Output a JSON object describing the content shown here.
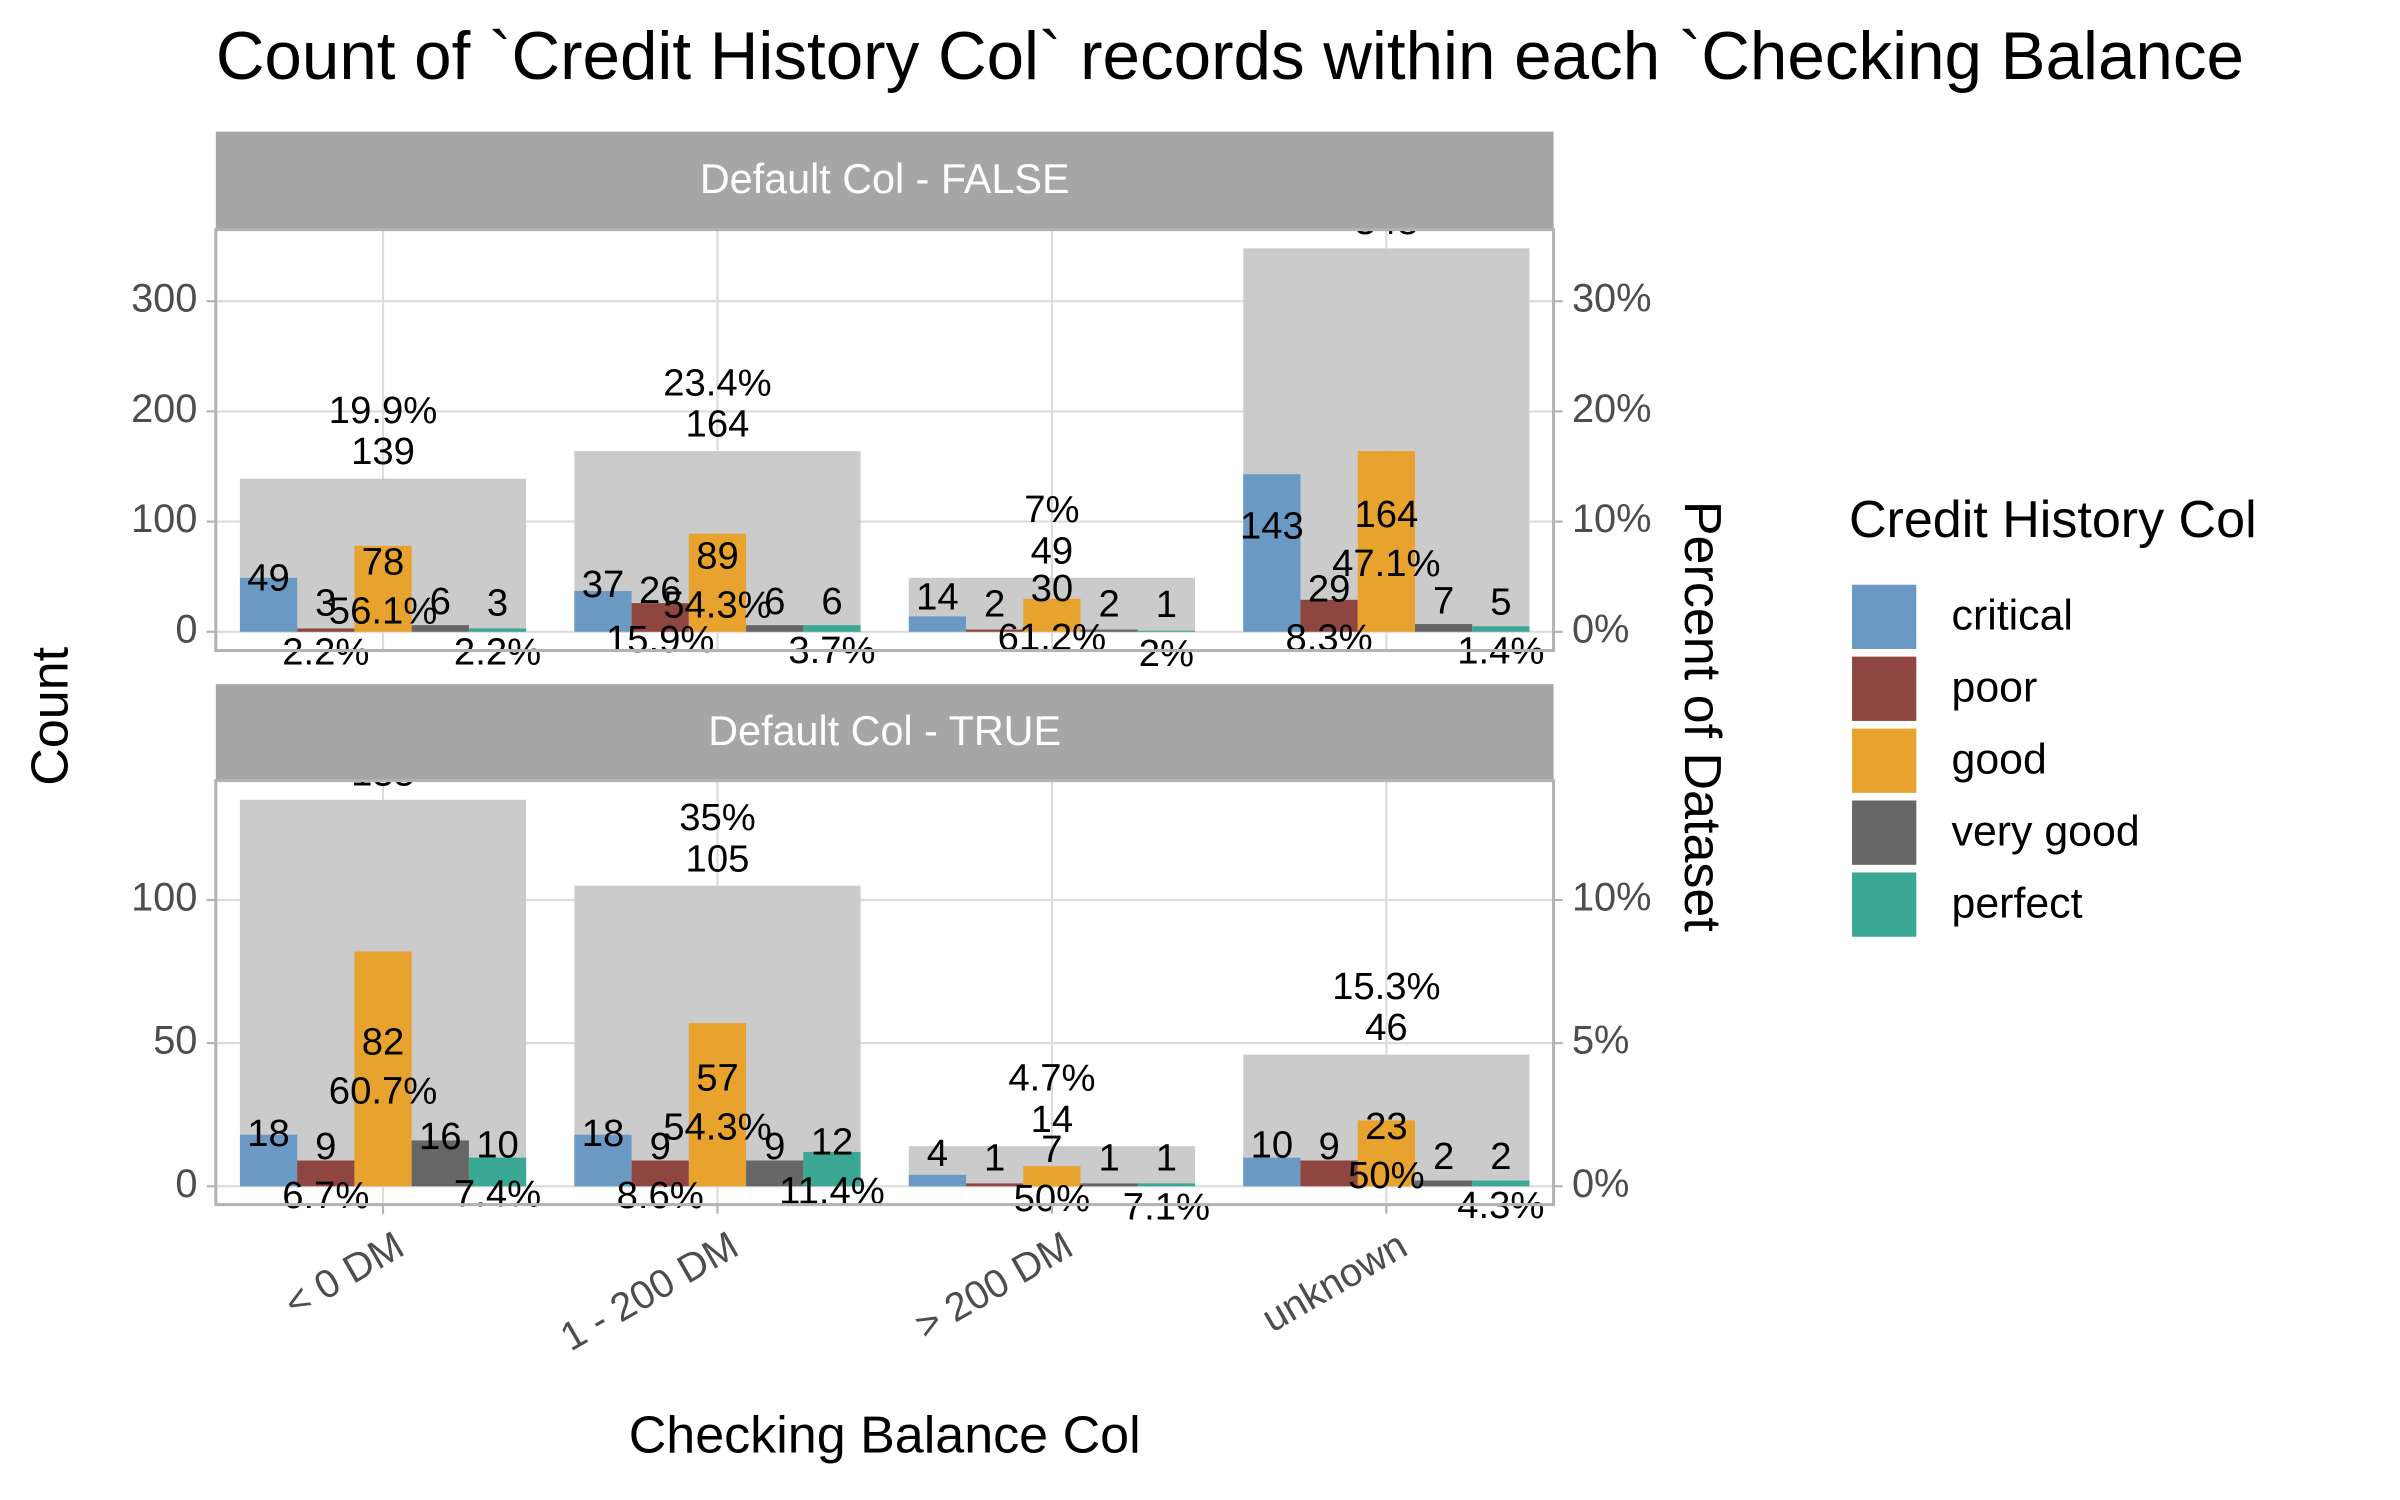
{
  "title": "Count of `Credit History Col` records within each `Checking Balance",
  "x_label": "Checking Balance Col",
  "y_label": "Count",
  "y2_label": "Percent of Dataset",
  "legend_title": "Credit History Col",
  "categories": [
    "< 0 DM",
    "1 - 200 DM",
    "> 200 DM",
    "unknown"
  ],
  "series": [
    {
      "name": "critical",
      "color": "#6a9ac4"
    },
    {
      "name": "poor",
      "color": "#8f4640"
    },
    {
      "name": "good",
      "color": "#e8a22e"
    },
    {
      "name": "very good",
      "color": "#666666"
    },
    {
      "name": "perfect",
      "color": "#3aa894"
    }
  ],
  "chart_data": [
    {
      "type": "bar",
      "facet": "Default Col - FALSE",
      "totals": [
        139,
        164,
        49,
        348
      ],
      "total_labels": [
        "19.9%",
        "23.4%",
        "7%",
        null
      ],
      "total_color": "#c8c8c8",
      "series": [
        {
          "values": [
            49,
            37,
            14,
            143
          ],
          "percent_labels": [
            null,
            null,
            null,
            null
          ]
        },
        {
          "values": [
            3,
            26,
            2,
            29
          ],
          "percent_labels": [
            "2.2%",
            "15.9%",
            null,
            "8.3%"
          ]
        },
        {
          "values": [
            78,
            89,
            30,
            164
          ],
          "percent_labels": [
            "56.1%",
            "54.3%",
            "61.2%",
            "47.1%"
          ]
        },
        {
          "values": [
            6,
            6,
            2,
            7
          ],
          "percent_labels": [
            null,
            null,
            null,
            null
          ]
        },
        {
          "values": [
            3,
            6,
            1,
            5
          ],
          "percent_labels": [
            "2.2%",
            "3.7%",
            "2%",
            "1.4%"
          ]
        }
      ],
      "ylim": [
        -17,
        365
      ],
      "yticks": [
        0,
        100,
        200,
        300
      ],
      "y2lim": [
        -1.7,
        36.5
      ],
      "y2ticks": [
        {
          "value": 0,
          "label": "0%"
        },
        {
          "value": 10,
          "label": "10%"
        },
        {
          "value": 20,
          "label": "20%"
        },
        {
          "value": 30,
          "label": "30%"
        }
      ],
      "grid": true
    },
    {
      "type": "bar",
      "facet": "Default Col - TRUE",
      "totals": [
        135,
        105,
        14,
        46
      ],
      "total_labels": [
        null,
        "35%",
        "4.7%",
        "15.3%"
      ],
      "total_color": "#c8c8c8",
      "series": [
        {
          "values": [
            18,
            18,
            4,
            10
          ],
          "percent_labels": [
            null,
            null,
            null,
            null
          ]
        },
        {
          "values": [
            9,
            9,
            1,
            9
          ],
          "percent_labels": [
            "6.7%",
            "8.6%",
            null,
            null
          ]
        },
        {
          "values": [
            82,
            57,
            7,
            23
          ],
          "percent_labels": [
            "60.7%",
            "54.3%",
            "50%",
            "50%"
          ]
        },
        {
          "values": [
            16,
            9,
            1,
            2
          ],
          "percent_labels": [
            null,
            null,
            null,
            null
          ]
        },
        {
          "values": [
            10,
            12,
            1,
            2
          ],
          "percent_labels": [
            "7.4%",
            "11.4%",
            "7.1%",
            "4.3%"
          ]
        }
      ],
      "ylim": [
        -6.4,
        141.7
      ],
      "yticks": [
        0,
        50,
        100
      ],
      "y2lim": [
        -0.64,
        14.17
      ],
      "y2ticks": [
        {
          "value": 0,
          "label": "0%"
        },
        {
          "value": 5,
          "label": "5%"
        },
        {
          "value": 10,
          "label": "10%"
        }
      ],
      "grid": true
    }
  ]
}
